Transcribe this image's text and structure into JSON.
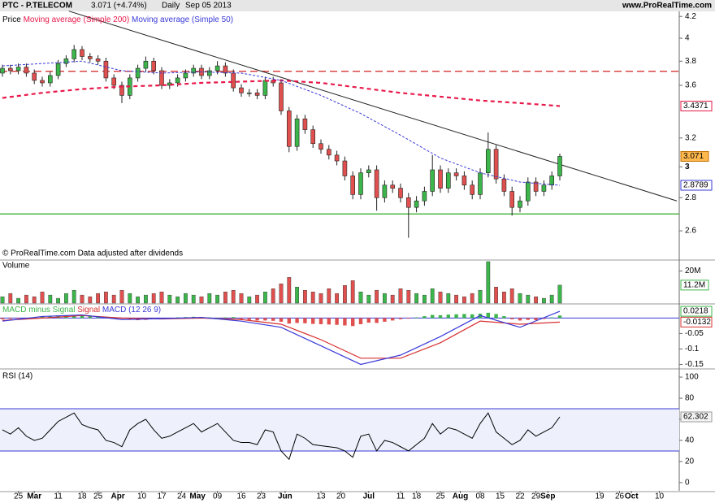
{
  "header": {
    "symbol": "PTC - P.TELECOM",
    "quote": "3.071 (+4.74%)",
    "period": "Daily",
    "date": "Sep 05 2013",
    "site": "www.ProRealTime.com"
  },
  "chart_data": [
    {
      "type": "candlestick",
      "name": "Price",
      "note": "© ProRealTime.com  Data adjusted after dividends",
      "log": true,
      "up_color": "#3cb54a",
      "down_color": "#e0504f",
      "xlim": [
        0,
        170
      ],
      "ylim": [
        2.44,
        4.24
      ],
      "yticks": [
        2.6,
        2.8,
        3,
        3.2,
        3.6,
        3.8,
        4,
        4.2
      ],
      "xticks": [
        {
          "value": 4,
          "label": "25"
        },
        {
          "value": 8,
          "label": "Mar"
        },
        {
          "value": 14,
          "label": "11"
        },
        {
          "value": 20,
          "label": "18"
        },
        {
          "value": 24,
          "label": "25"
        },
        {
          "value": 29,
          "label": "Apr"
        },
        {
          "value": 35,
          "label": "10"
        },
        {
          "value": 40,
          "label": "17"
        },
        {
          "value": 45,
          "label": "24"
        },
        {
          "value": 49,
          "label": "May"
        },
        {
          "value": 54,
          "label": "09"
        },
        {
          "value": 60,
          "label": "16"
        },
        {
          "value": 65,
          "label": "23"
        },
        {
          "value": 71,
          "label": "Jun"
        },
        {
          "value": 80,
          "label": "13"
        },
        {
          "value": 85,
          "label": "20"
        },
        {
          "value": 92,
          "label": "Jul"
        },
        {
          "value": 100,
          "label": "11"
        },
        {
          "value": 104,
          "label": "18"
        },
        {
          "value": 110,
          "label": "25"
        },
        {
          "value": 115,
          "label": "Aug"
        },
        {
          "value": 120,
          "label": "08"
        },
        {
          "value": 125,
          "label": "15"
        },
        {
          "value": 130,
          "label": "22"
        },
        {
          "value": 134,
          "label": "29"
        },
        {
          "value": 137,
          "label": "Sep"
        },
        {
          "value": 150,
          "label": "19"
        },
        {
          "value": 155,
          "label": "26"
        },
        {
          "value": 158,
          "label": "Oct"
        },
        {
          "value": 165,
          "label": "10"
        }
      ],
      "x": [
        0,
        2,
        4,
        6,
        8,
        10,
        12,
        14,
        16,
        18,
        20,
        22,
        24,
        26,
        28,
        30,
        32,
        34,
        36,
        38,
        40,
        42,
        44,
        46,
        48,
        50,
        52,
        54,
        56,
        58,
        60,
        62,
        64,
        66,
        68,
        70,
        72,
        74,
        76,
        78,
        80,
        82,
        84,
        86,
        88,
        90,
        92,
        94,
        96,
        98,
        100,
        102,
        104,
        106,
        108,
        110,
        112,
        114,
        116,
        118,
        120,
        122,
        124,
        126,
        128,
        130,
        132,
        134,
        136,
        138,
        140
      ],
      "open": [
        3.7,
        3.74,
        3.72,
        3.75,
        3.7,
        3.64,
        3.62,
        3.68,
        3.78,
        3.82,
        3.9,
        3.84,
        3.82,
        3.8,
        3.66,
        3.6,
        3.52,
        3.66,
        3.74,
        3.8,
        3.72,
        3.6,
        3.62,
        3.66,
        3.7,
        3.74,
        3.68,
        3.72,
        3.76,
        3.7,
        3.58,
        3.54,
        3.54,
        3.52,
        3.64,
        3.62,
        3.4,
        3.14,
        3.34,
        3.26,
        3.16,
        3.12,
        3.08,
        3.04,
        2.94,
        2.82,
        2.96,
        2.98,
        2.8,
        2.88,
        2.86,
        2.8,
        2.74,
        2.78,
        2.84,
        2.98,
        2.86,
        2.96,
        2.94,
        2.88,
        2.82,
        2.96,
        3.12,
        2.92,
        2.84,
        2.74,
        2.78,
        2.9,
        2.84,
        2.88,
        2.94
      ],
      "high": [
        3.77,
        3.77,
        3.78,
        3.78,
        3.73,
        3.67,
        3.71,
        3.81,
        3.85,
        3.94,
        3.93,
        3.87,
        3.85,
        3.83,
        3.69,
        3.63,
        3.69,
        3.77,
        3.84,
        3.83,
        3.75,
        3.65,
        3.69,
        3.73,
        3.77,
        3.77,
        3.75,
        3.8,
        3.79,
        3.73,
        3.61,
        3.57,
        3.57,
        3.67,
        3.67,
        3.65,
        3.43,
        3.37,
        3.37,
        3.29,
        3.19,
        3.15,
        3.11,
        3.07,
        2.97,
        2.99,
        3.01,
        3.01,
        2.91,
        2.91,
        2.89,
        2.83,
        2.81,
        2.87,
        3.08,
        3.01,
        2.99,
        2.99,
        2.97,
        2.91,
        2.99,
        3.24,
        3.15,
        2.95,
        2.87,
        2.81,
        2.93,
        2.93,
        2.91,
        2.97,
        3.09
      ],
      "low": [
        3.67,
        3.69,
        3.69,
        3.67,
        3.61,
        3.59,
        3.59,
        3.65,
        3.75,
        3.79,
        3.81,
        3.79,
        3.77,
        3.63,
        3.57,
        3.46,
        3.49,
        3.63,
        3.71,
        3.69,
        3.57,
        3.57,
        3.59,
        3.63,
        3.67,
        3.65,
        3.65,
        3.69,
        3.67,
        3.55,
        3.51,
        3.51,
        3.49,
        3.49,
        3.59,
        3.37,
        3.1,
        3.11,
        3.23,
        3.13,
        3.09,
        3.05,
        3.01,
        2.91,
        2.79,
        2.79,
        2.93,
        2.72,
        2.77,
        2.83,
        2.77,
        2.56,
        2.71,
        2.75,
        2.81,
        2.83,
        2.83,
        2.91,
        2.85,
        2.79,
        2.79,
        2.93,
        2.89,
        2.81,
        2.69,
        2.71,
        2.75,
        2.81,
        2.81,
        2.85,
        2.91
      ],
      "close": [
        3.74,
        3.72,
        3.75,
        3.7,
        3.64,
        3.62,
        3.68,
        3.78,
        3.82,
        3.9,
        3.84,
        3.82,
        3.8,
        3.66,
        3.6,
        3.52,
        3.66,
        3.74,
        3.8,
        3.72,
        3.6,
        3.62,
        3.66,
        3.7,
        3.74,
        3.68,
        3.72,
        3.76,
        3.7,
        3.58,
        3.54,
        3.54,
        3.52,
        3.64,
        3.62,
        3.4,
        3.14,
        3.34,
        3.26,
        3.16,
        3.12,
        3.08,
        3.04,
        2.94,
        2.82,
        2.96,
        2.98,
        2.8,
        2.88,
        2.86,
        2.8,
        2.74,
        2.78,
        2.84,
        2.98,
        2.86,
        2.96,
        2.94,
        2.88,
        2.82,
        2.96,
        3.12,
        2.92,
        2.84,
        2.74,
        2.78,
        2.9,
        2.84,
        2.88,
        2.94,
        3.071
      ],
      "last_box_color": "#ffb84d",
      "series": [
        {
          "name": "Moving average (Simple 200)",
          "color": "#e8194a",
          "x": [
            0,
            10,
            20,
            30,
            40,
            50,
            60,
            70,
            80,
            90,
            100,
            110,
            120,
            130,
            140
          ],
          "values": [
            3.5,
            3.54,
            3.57,
            3.59,
            3.6,
            3.62,
            3.63,
            3.64,
            3.62,
            3.58,
            3.54,
            3.51,
            3.48,
            3.46,
            3.4371
          ]
        },
        {
          "name": "Moving average (Simple 50)",
          "color": "#3a3ad8",
          "x": [
            0,
            10,
            20,
            30,
            40,
            50,
            60,
            70,
            80,
            90,
            100,
            110,
            120,
            130,
            140
          ],
          "values": [
            3.76,
            3.78,
            3.8,
            3.72,
            3.7,
            3.71,
            3.7,
            3.64,
            3.52,
            3.38,
            3.22,
            3.06,
            2.96,
            2.9,
            2.8789
          ]
        }
      ],
      "hlines": [
        {
          "value": 3.715,
          "color": "#d42020"
        },
        {
          "value": 2.7,
          "color": "#3cb030"
        }
      ],
      "trendline": {
        "x": [
          16.7,
          169.4
        ],
        "values": [
          4.25,
          2.78
        ],
        "color": "#222"
      }
    },
    {
      "type": "bar",
      "name": "Volume",
      "color": "#3cb54a",
      "down_color": "#e0504f",
      "ylim": [
        0,
        26.3
      ],
      "yticks": [
        {
          "value": 20,
          "label": "20M"
        }
      ],
      "values": [
        4,
        6,
        3,
        5,
        4,
        7,
        5,
        3,
        6,
        8,
        5,
        4,
        6,
        7,
        5,
        8,
        6,
        4,
        5,
        6,
        7,
        5,
        4,
        6,
        5,
        4,
        6,
        5,
        7,
        8,
        6,
        4,
        5,
        7,
        9,
        12,
        16,
        10,
        8,
        7,
        6,
        9,
        6,
        11,
        14,
        7,
        5,
        8,
        6,
        5,
        9,
        8,
        6,
        5,
        9,
        7,
        6,
        5,
        4,
        6,
        8,
        25.8,
        10,
        7,
        9,
        6,
        5,
        4,
        3,
        5,
        11.2
      ],
      "value_labels": [
        null,
        null,
        null,
        null,
        null,
        null,
        null,
        null,
        null,
        null,
        null,
        null,
        null,
        null,
        null,
        null,
        null,
        null,
        null,
        null,
        null,
        null,
        null,
        null,
        null,
        null,
        null,
        null,
        null,
        null,
        null,
        null,
        null,
        null,
        null,
        null,
        null,
        null,
        null,
        null,
        null,
        null,
        null,
        null,
        null,
        null,
        null,
        null,
        null,
        null,
        null,
        null,
        null,
        null,
        null,
        null,
        null,
        null,
        null,
        null,
        null,
        null,
        null,
        null,
        null,
        null,
        null,
        null,
        null,
        null,
        "11.2M"
      ]
    },
    {
      "type": "macd",
      "ylim": [
        -0.162,
        0.043
      ],
      "yticks": [
        -0.15,
        -0.1,
        -0.05
      ],
      "histogram": {
        "name": "MACD minus Signal",
        "color": "#3cb54a",
        "down_color": "#e0504f",
        "values": [
          -0.004,
          -0.003,
          -0.002,
          0,
          0.002,
          0.004,
          0.006,
          0.008,
          0.009,
          0.008,
          0.009,
          0.008,
          0.006,
          0.004,
          0.002,
          -0.002,
          -0.005,
          -0.007,
          -0.006,
          -0.004,
          -0.002,
          0,
          0.002,
          0.003,
          0.004,
          0.003,
          0.002,
          0.001,
          0.002,
          0.003,
          -0.003,
          -0.006,
          -0.008,
          -0.008,
          -0.009,
          -0.012,
          -0.018,
          -0.016,
          -0.017,
          -0.019,
          -0.02,
          -0.021,
          -0.022,
          -0.024,
          -0.026,
          -0.02,
          -0.015,
          -0.016,
          -0.012,
          -0.008,
          -0.004,
          -0.002,
          0.002,
          0.006,
          0.01,
          0.009,
          0.011,
          0.012,
          0.013,
          0.012,
          0.014,
          0.017,
          0.013,
          0.006,
          -0.004,
          -0.008,
          -0.006,
          -0.007,
          -0.003,
          0.002,
          0.008
        ]
      },
      "series": [
        {
          "name": "Signal",
          "color": "#d83030",
          "x": [
            0,
            10,
            20,
            30,
            40,
            50,
            60,
            70,
            80,
            90,
            100,
            110,
            120,
            130,
            140
          ],
          "values": [
            -0.008,
            0.0,
            0.008,
            0.0,
            -0.003,
            0.0,
            -0.005,
            -0.02,
            -0.07,
            -0.13,
            -0.13,
            -0.08,
            -0.01,
            -0.02,
            -0.0132
          ]
        },
        {
          "name": "MACD (12 26 9)",
          "color": "#3a3ad8",
          "x": [
            0,
            10,
            20,
            30,
            40,
            50,
            60,
            70,
            80,
            90,
            100,
            110,
            120,
            130,
            140
          ],
          "values": [
            -0.01,
            0.005,
            0.01,
            -0.005,
            -0.002,
            0.002,
            -0.01,
            -0.03,
            -0.09,
            -0.15,
            -0.12,
            -0.06,
            0.008,
            -0.03,
            0.0218
          ]
        }
      ]
    },
    {
      "type": "line",
      "name": "RSI (14)",
      "color": "#000",
      "ylim": [
        -7.8,
        107
      ],
      "yticks": [
        0,
        20,
        40,
        60,
        80,
        100
      ],
      "bands": [
        30,
        70
      ],
      "band_color": "#3a3ad8",
      "values": [
        50,
        46,
        52,
        44,
        40,
        42,
        50,
        58,
        62,
        66,
        55,
        52,
        50,
        40,
        38,
        34,
        50,
        56,
        60,
        50,
        42,
        44,
        48,
        52,
        56,
        48,
        52,
        56,
        48,
        40,
        38,
        38,
        36,
        50,
        48,
        30,
        22,
        46,
        42,
        36,
        35,
        34,
        33,
        30,
        24,
        44,
        46,
        30,
        40,
        38,
        34,
        30,
        36,
        42,
        56,
        46,
        52,
        50,
        46,
        42,
        56,
        66,
        48,
        42,
        36,
        40,
        50,
        44,
        48,
        52,
        62.302
      ]
    }
  ]
}
